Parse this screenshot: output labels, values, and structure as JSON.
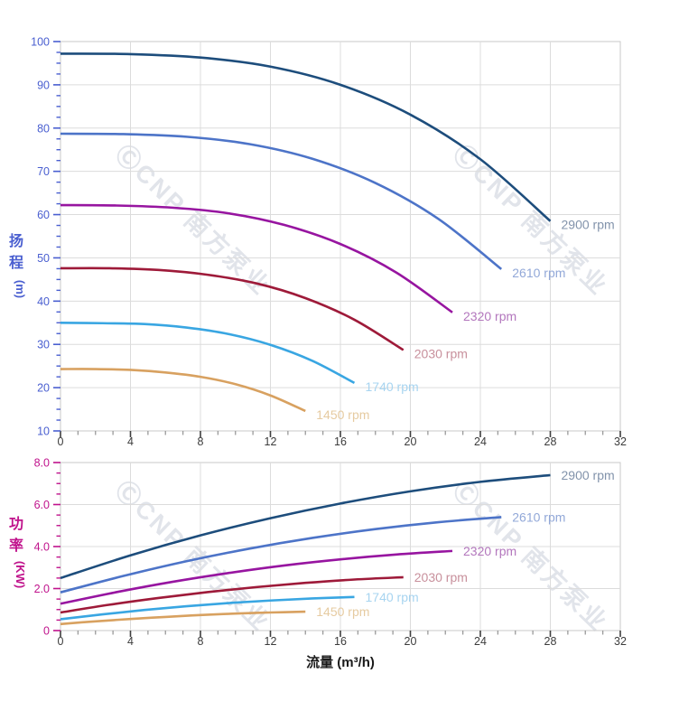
{
  "watermark": {
    "text": "ⒸCNP 南方泵业",
    "color": "rgba(163,174,192,0.33)",
    "rotation_deg": 44
  },
  "x_axis": {
    "title": "流量 (m³/h)",
    "tick_labels": [
      "0",
      "4",
      "8",
      "12",
      "16",
      "20",
      "24",
      "28",
      "32"
    ],
    "tick_label_color": "#3c3c3c",
    "title_color": "#1a1a1a"
  },
  "chart_data": [
    {
      "type": "line",
      "id": "head-curve-chart",
      "ylabel": "扬程",
      "y_unit": "(m)",
      "axis_color": "#4a5fd0",
      "xlim": [
        0,
        32
      ],
      "ylim": [
        10,
        100
      ],
      "x_major": 4,
      "x_minor": 1,
      "y_major": 10,
      "y_minor": 2.5,
      "y_tick_labels": [
        "10",
        "20",
        "30",
        "40",
        "50",
        "60",
        "70",
        "80",
        "90",
        "100"
      ],
      "x_tick_labels_shown": true,
      "grid": true,
      "legend_position": "end-of-line",
      "series": [
        {
          "name": "2900 rpm",
          "color": "#1d4d7c",
          "label_color": "#8293ab",
          "x": [
            0,
            4,
            8,
            12,
            16,
            20,
            24,
            28
          ],
          "y": [
            97.2,
            97.1,
            96.3,
            94.2,
            90.0,
            83.1,
            72.8,
            58.5
          ]
        },
        {
          "name": "2610 rpm",
          "color": "#4d74c8",
          "label_color": "#92a8d8",
          "x": [
            0,
            3.6,
            7.2,
            10.8,
            14.4,
            18,
            21.6,
            25.2
          ],
          "y": [
            78.7,
            78.6,
            78.0,
            76.3,
            72.9,
            67.3,
            59.0,
            47.4
          ]
        },
        {
          "name": "2320 rpm",
          "color": "#9715a0",
          "label_color": "#b377bd",
          "x": [
            0,
            3.2,
            6.4,
            9.6,
            12.8,
            16,
            19.2,
            22.4
          ],
          "y": [
            62.2,
            62.1,
            61.6,
            60.3,
            57.6,
            53.2,
            46.6,
            37.4
          ]
        },
        {
          "name": "2030 rpm",
          "color": "#9e1a39",
          "label_color": "#c8909c",
          "x": [
            0,
            2.8,
            5.6,
            8.4,
            11.2,
            14,
            16.8,
            19.6
          ],
          "y": [
            47.6,
            47.6,
            47.2,
            46.1,
            44.1,
            40.7,
            35.7,
            28.7
          ]
        },
        {
          "name": "1740 rpm",
          "color": "#39a6e2",
          "label_color": "#a7d4f0",
          "x": [
            0,
            2.4,
            4.8,
            7.2,
            9.6,
            12,
            14.4,
            16.8
          ],
          "y": [
            35.0,
            34.9,
            34.7,
            33.9,
            32.4,
            29.9,
            26.2,
            21.1
          ]
        },
        {
          "name": "1450 rpm",
          "color": "#d8a160",
          "label_color": "#e6cba1",
          "x": [
            0,
            2,
            4,
            6,
            8,
            10,
            12,
            14
          ],
          "y": [
            24.3,
            24.3,
            24.1,
            23.5,
            22.5,
            20.8,
            18.2,
            14.6
          ]
        }
      ]
    },
    {
      "type": "line",
      "id": "power-curve-chart",
      "ylabel": "功率",
      "y_unit": "(KW)",
      "axis_color": "#c0138c",
      "xlim": [
        0,
        32
      ],
      "ylim": [
        0,
        8
      ],
      "x_major": 4,
      "x_minor": 1,
      "y_major": 2,
      "y_minor": 0.5,
      "y_tick_labels": [
        "0",
        "2.0",
        "4.0",
        "6.0",
        "8.0"
      ],
      "x_tick_labels_shown": true,
      "grid": true,
      "legend_position": "end-of-line",
      "series": [
        {
          "name": "2900 rpm",
          "color": "#1d4d7c",
          "label_color": "#8293ab",
          "x": [
            0,
            4,
            8,
            12,
            16,
            20,
            24,
            28
          ],
          "y": [
            2.5,
            3.58,
            4.53,
            5.35,
            6.05,
            6.63,
            7.08,
            7.4
          ]
        },
        {
          "name": "2610 rpm",
          "color": "#4d74c8",
          "label_color": "#92a8d8",
          "x": [
            0,
            3.6,
            7.2,
            10.8,
            14.4,
            18,
            21.6,
            25.2
          ],
          "y": [
            1.82,
            2.6,
            3.3,
            3.9,
            4.41,
            4.83,
            5.16,
            5.4
          ]
        },
        {
          "name": "2320 rpm",
          "color": "#9715a0",
          "label_color": "#b377bd",
          "x": [
            0,
            3.2,
            6.4,
            9.6,
            12.8,
            16,
            19.2,
            22.4
          ],
          "y": [
            1.28,
            1.83,
            2.32,
            2.74,
            3.1,
            3.39,
            3.62,
            3.79
          ]
        },
        {
          "name": "2030 rpm",
          "color": "#9e1a39",
          "label_color": "#c8909c",
          "x": [
            0,
            2.8,
            5.6,
            8.4,
            11.2,
            14,
            16.8,
            19.6
          ],
          "y": [
            0.86,
            1.23,
            1.55,
            1.83,
            2.07,
            2.27,
            2.43,
            2.54
          ]
        },
        {
          "name": "1740 rpm",
          "color": "#39a6e2",
          "label_color": "#a7d4f0",
          "x": [
            0,
            2.4,
            4.8,
            7.2,
            9.6,
            12,
            14.4,
            16.8
          ],
          "y": [
            0.54,
            0.77,
            0.98,
            1.16,
            1.31,
            1.43,
            1.53,
            1.6
          ]
        },
        {
          "name": "1450 rpm",
          "color": "#d8a160",
          "label_color": "#e6cba1",
          "x": [
            0,
            2,
            4,
            6,
            8,
            10,
            12,
            14
          ],
          "y": [
            0.31,
            0.44,
            0.55,
            0.65,
            0.74,
            0.81,
            0.86,
            0.9
          ]
        }
      ]
    }
  ],
  "style": {
    "grid_color": "#dcdcdc",
    "border_color": "#c9c9c9",
    "x_major_tick_color": "#3f3f3f",
    "x_minor_tick_color": "#9a9a9a"
  }
}
